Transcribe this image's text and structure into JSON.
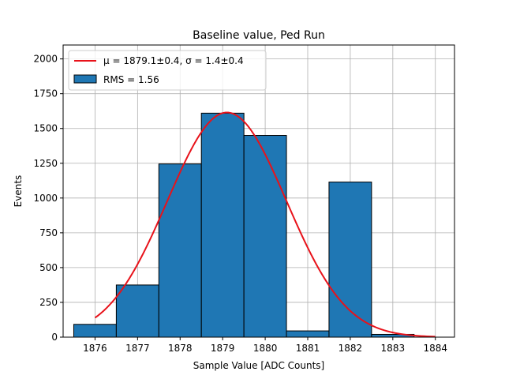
{
  "chart_data": {
    "type": "bar",
    "title": "Baseline value, Ped Run",
    "xlabel": "Sample Value [ADC Counts]",
    "ylabel": "Events",
    "xlim": [
      1875.25,
      1884.45
    ],
    "ylim": [
      0,
      2100
    ],
    "xticks": [
      "1876",
      "1877",
      "1878",
      "1879",
      "1880",
      "1881",
      "1882",
      "1883",
      "1884"
    ],
    "yticks": [
      "0",
      "250",
      "500",
      "750",
      "1000",
      "1250",
      "1500",
      "1750",
      "2000"
    ],
    "grid": true,
    "legend_position": "top-left",
    "bin_edges": [
      1875.5,
      1876.5,
      1877.5,
      1878.5,
      1879.5,
      1880.5,
      1881.5,
      1882.5,
      1883.5
    ],
    "values": [
      92,
      375,
      1245,
      1610,
      1450,
      45,
      1115,
      20
    ],
    "bar_color": "#1f77b4",
    "fit": {
      "mu": 1879.1,
      "sigma": 1.4,
      "amplitude": 1615,
      "x_range": [
        1876,
        1884
      ],
      "color": "#e8121a"
    },
    "legend": [
      {
        "label": "μ = 1879.1±0.4, σ = 1.4±0.4",
        "kind": "line",
        "color": "#e8121a"
      },
      {
        "label": "RMS = 1.56",
        "kind": "patch",
        "color": "#1f77b4"
      }
    ]
  }
}
